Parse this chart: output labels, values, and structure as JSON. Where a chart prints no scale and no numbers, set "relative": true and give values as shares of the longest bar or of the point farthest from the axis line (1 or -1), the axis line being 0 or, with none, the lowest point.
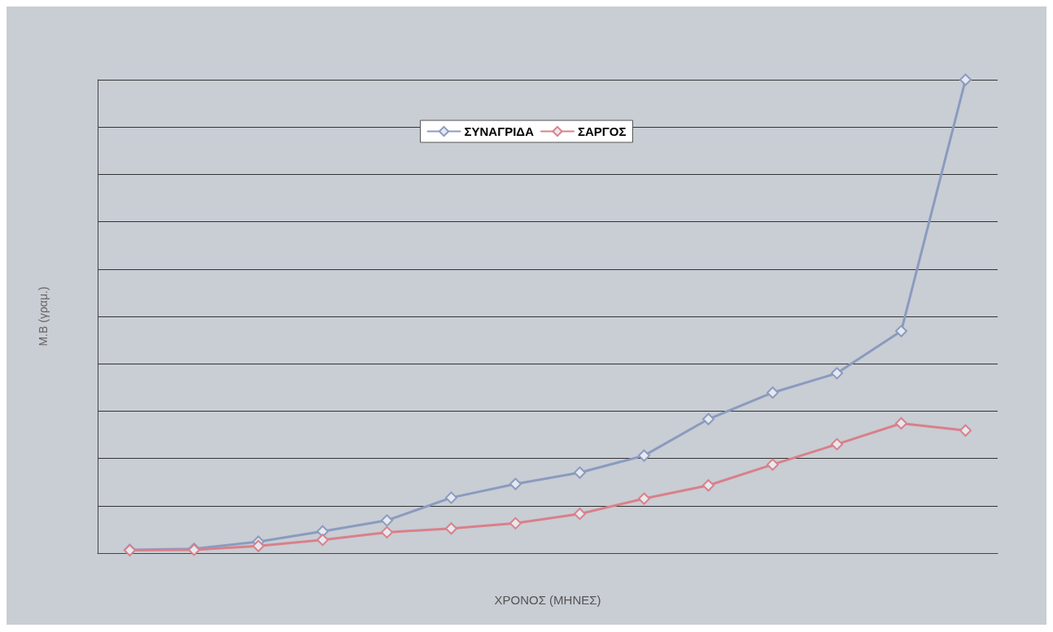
{
  "chart_data": {
    "type": "line",
    "xlabel": "ΧΡΟΝΟΣ (ΜΗΝΕΣ)",
    "ylabel": "M.B (γραμ.)",
    "relative": true,
    "grid": "y",
    "legend": "top",
    "marker": "diamond",
    "categories": [
      null,
      null,
      null,
      null,
      null,
      null,
      null,
      null,
      null,
      null,
      null,
      null,
      null,
      null
    ],
    "series": [
      {
        "name": "ΣΥΝΑΓΡΙΔΑ",
        "color": "#8a9bbf",
        "values": [
          0.007,
          0.009,
          0.024,
          0.046,
          0.069,
          0.117,
          0.146,
          0.17,
          0.206,
          0.283,
          0.339,
          0.38,
          0.469,
          1
        ]
      },
      {
        "name": "ΣΑΡΓΟΣ",
        "color": "#d9808a",
        "values": [
          0.006,
          0.007,
          0.015,
          0.028,
          0.044,
          0.052,
          0.063,
          0.083,
          0.115,
          0.143,
          0.187,
          0.23,
          0.274,
          0.259
        ]
      }
    ]
  }
}
